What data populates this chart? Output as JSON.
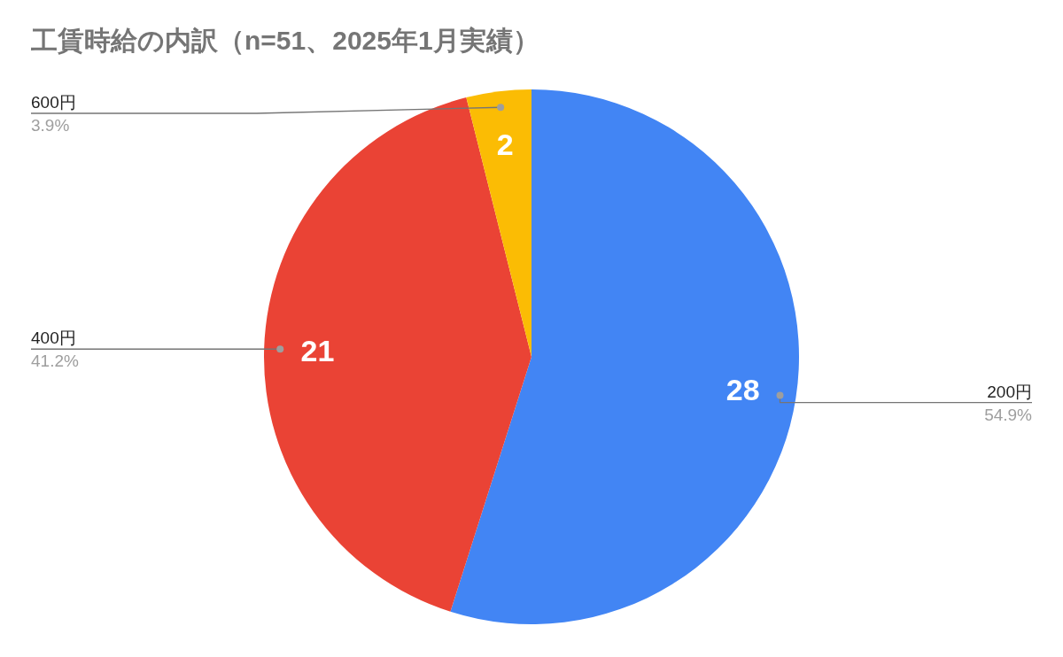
{
  "chart_data": {
    "type": "pie",
    "title": "工賃時給の内訳（n=51、2025年1月実績）",
    "categories": [
      "200円",
      "400円",
      "600円"
    ],
    "values": [
      28,
      21,
      2
    ],
    "colors": [
      "#4285f4",
      "#ea4335",
      "#fbbc04"
    ],
    "data_labels": true,
    "annotations": [
      "54.9%",
      "41.2%",
      "3.9%"
    ]
  }
}
